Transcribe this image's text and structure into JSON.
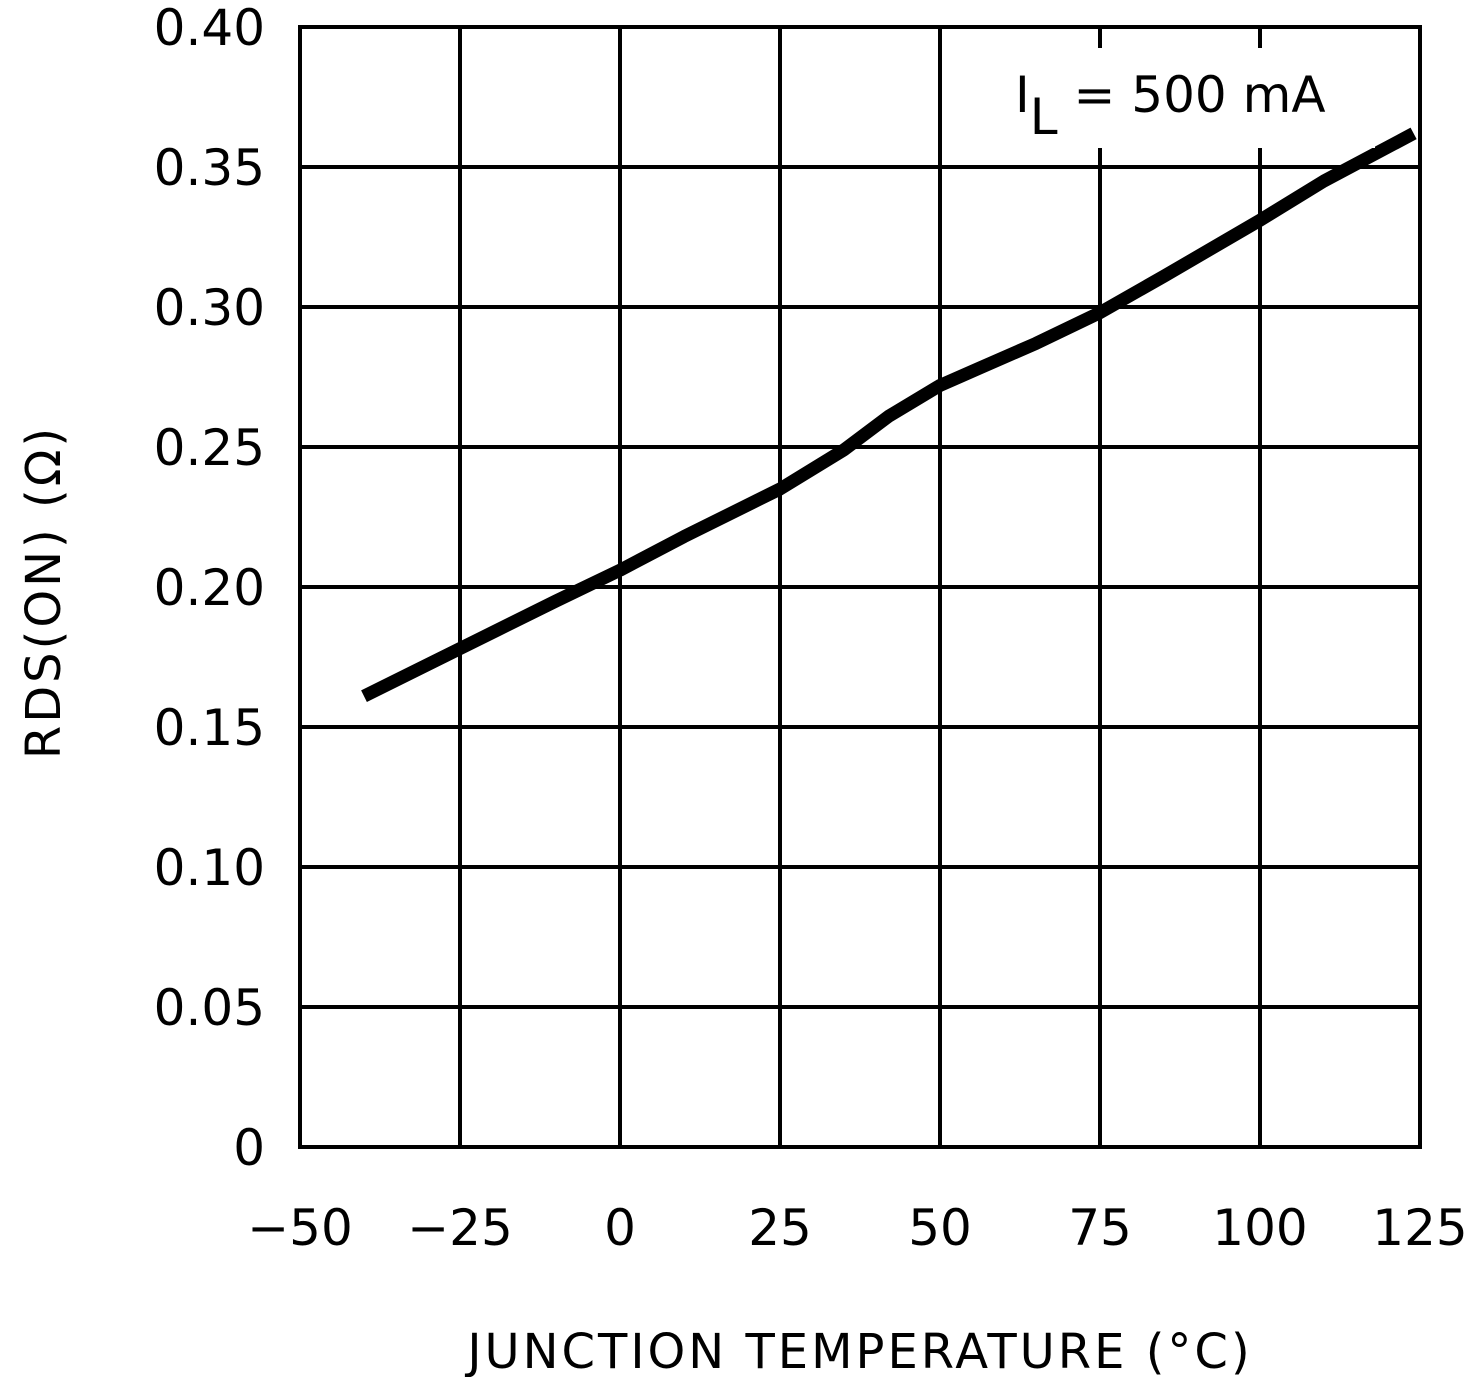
{
  "chart_data": {
    "type": "line",
    "title": "",
    "xlabel": "JUNCTION TEMPERATURE (°C)",
    "ylabel": "RDS(ON) (Ω)",
    "xlim": [
      -50,
      125
    ],
    "ylim": [
      0,
      0.4
    ],
    "xticks": [
      -50,
      -25,
      0,
      25,
      50,
      75,
      100,
      125
    ],
    "xtick_labels": [
      "−50",
      "−25",
      "0",
      "25",
      "50",
      "75",
      "100",
      "125"
    ],
    "yticks": [
      0,
      0.05,
      0.1,
      0.15,
      0.2,
      0.25,
      0.3,
      0.35,
      0.4
    ],
    "ytick_labels": [
      "0",
      "0.05",
      "0.10",
      "0.15",
      "0.20",
      "0.25",
      "0.30",
      "0.35",
      "0.40"
    ],
    "grid": true,
    "annotation": {
      "main": "I",
      "subscript": "L",
      "rest": " = 500 mA"
    },
    "series": [
      {
        "color": "#000000",
        "x": [
          -40,
          -25,
          -10,
          0,
          10,
          25,
          35,
          42,
          50,
          56,
          65,
          75,
          85,
          100,
          110,
          124
        ],
        "y": [
          0.161,
          0.178,
          0.195,
          0.206,
          0.218,
          0.235,
          0.249,
          0.261,
          0.272,
          0.278,
          0.287,
          0.298,
          0.311,
          0.331,
          0.345,
          0.362
        ]
      }
    ]
  },
  "colors": {
    "line": "#000000",
    "grid": "#000000",
    "background": "#ffffff"
  }
}
